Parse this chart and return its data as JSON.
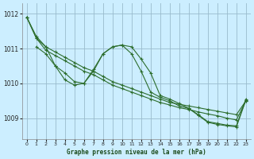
{
  "background_color": "#cceeff",
  "grid_color": "#99bbcc",
  "line_color": "#2d6e2d",
  "title": "Graphe pression niveau de la mer (hPa)",
  "xlim": [
    -0.5,
    23.5
  ],
  "ylim": [
    1008.4,
    1012.3
  ],
  "yticks": [
    1009,
    1010,
    1011,
    1012
  ],
  "xticks": [
    0,
    1,
    2,
    3,
    4,
    5,
    6,
    7,
    8,
    9,
    10,
    11,
    12,
    13,
    14,
    15,
    16,
    17,
    18,
    19,
    20,
    21,
    22,
    23
  ],
  "series": [
    {
      "x": [
        0,
        1,
        2,
        3,
        4,
        5,
        6,
        7,
        8,
        9,
        10,
        11,
        12,
        13,
        14,
        15,
        16,
        17,
        18,
        19,
        20,
        21,
        22,
        23
      ],
      "y": [
        1011.9,
        1011.35,
        1011.05,
        1010.9,
        1010.75,
        1010.6,
        1010.45,
        1010.35,
        1010.2,
        1010.05,
        1009.95,
        1009.85,
        1009.75,
        1009.65,
        1009.55,
        1009.45,
        1009.4,
        1009.35,
        1009.3,
        1009.25,
        1009.2,
        1009.15,
        1009.1,
        1009.5
      ]
    },
    {
      "x": [
        0,
        1,
        2,
        3,
        4,
        5,
        6,
        7,
        8,
        9,
        10,
        11,
        12,
        13,
        14,
        15,
        16,
        17,
        18,
        19,
        20,
        21,
        22,
        23
      ],
      "y": [
        1011.9,
        1011.3,
        1010.95,
        1010.8,
        1010.65,
        1010.5,
        1010.35,
        1010.25,
        1010.1,
        1009.95,
        1009.85,
        1009.75,
        1009.65,
        1009.55,
        1009.45,
        1009.38,
        1009.3,
        1009.25,
        1009.18,
        1009.12,
        1009.07,
        1009.0,
        1008.95,
        1009.5
      ]
    },
    {
      "x": [
        0,
        1,
        2,
        3,
        4,
        5,
        6,
        7,
        8,
        9,
        10,
        11,
        12,
        13,
        14,
        15,
        16,
        17,
        18,
        19,
        20,
        21,
        22,
        23
      ],
      "y": [
        1011.9,
        1011.3,
        1011.05,
        1010.5,
        1010.3,
        1010.05,
        1010.0,
        1010.35,
        1010.85,
        1011.05,
        1011.1,
        1010.85,
        1010.35,
        1009.75,
        1009.6,
        1009.5,
        1009.35,
        1009.28,
        1009.1,
        1008.9,
        1008.85,
        1008.8,
        1008.78,
        1009.55
      ]
    },
    {
      "x": [
        1,
        2,
        3,
        4,
        5,
        6,
        7,
        8,
        9,
        10,
        11,
        12,
        13,
        14,
        15,
        16,
        17,
        18,
        19,
        20,
        21,
        22,
        23
      ],
      "y": [
        1011.05,
        1010.85,
        1010.5,
        1010.1,
        1009.95,
        1010.0,
        1010.4,
        1010.85,
        1011.05,
        1011.1,
        1011.05,
        1010.7,
        1010.3,
        1009.65,
        1009.55,
        1009.42,
        1009.28,
        1009.08,
        1008.88,
        1008.82,
        1008.78,
        1008.75,
        1009.52
      ]
    }
  ]
}
